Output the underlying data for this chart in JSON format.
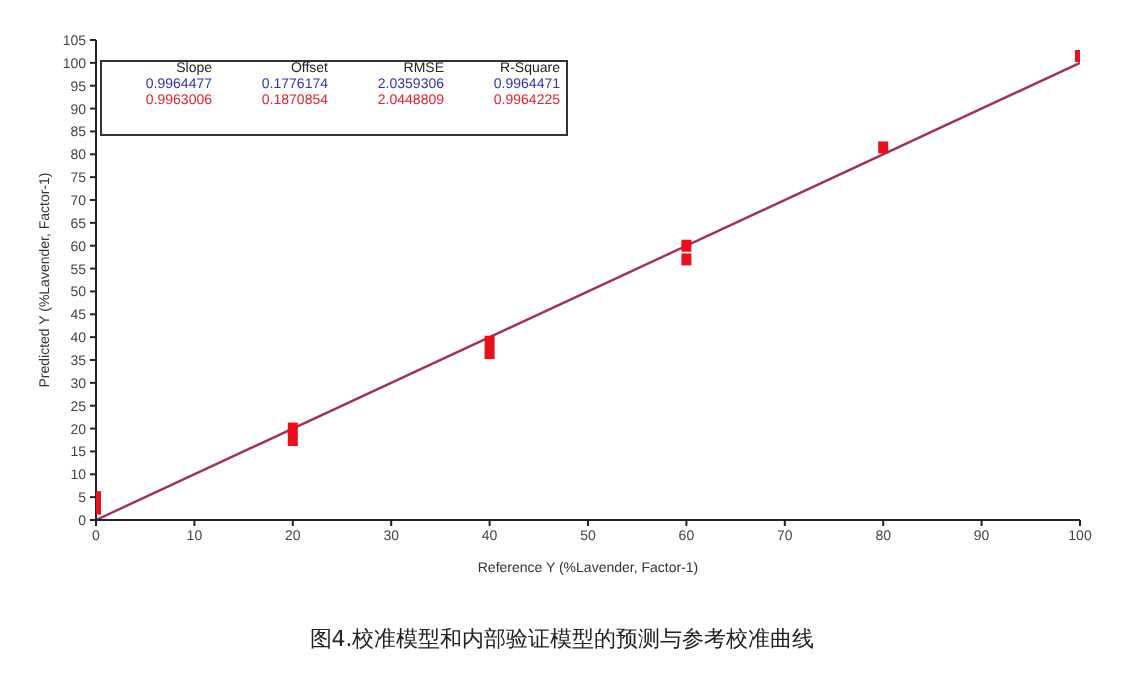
{
  "chart_data": {
    "type": "scatter",
    "title": "图4.校准模型和内部验证模型的预测与参考校准曲线",
    "xlabel": "Reference Y (%Lavender, Factor-1)",
    "ylabel": "Predicted Y (%Lavender, Factor-1)",
    "xlim": [
      0,
      100
    ],
    "ylim": [
      0,
      105
    ],
    "xticks": [
      0,
      10,
      20,
      30,
      40,
      50,
      60,
      70,
      80,
      90,
      100
    ],
    "yticks": [
      0,
      5,
      10,
      15,
      20,
      25,
      30,
      35,
      40,
      45,
      50,
      55,
      60,
      65,
      70,
      75,
      80,
      85,
      90,
      95,
      100,
      105
    ],
    "marker": "square",
    "annotations": [
      "Slope",
      "Offset",
      "RMSE",
      "R-Square",
      "0.9964477",
      "0.1776174",
      "2.0359306",
      "0.9964471",
      "0.9963006",
      "0.1870854",
      "2.0448809",
      "0.9964225"
    ],
    "series": [
      {
        "color": "#e8101a",
        "x": [
          0,
          0,
          20,
          20,
          40,
          40,
          60,
          60,
          80,
          100
        ],
        "values": [
          2.5,
          5,
          17.5,
          20,
          36.5,
          39,
          57,
          60,
          81.5,
          101.5
        ]
      },
      {
        "type": "line",
        "marker": "none",
        "color": "#a03060",
        "x": [
          0,
          100
        ],
        "values": [
          0,
          100
        ]
      }
    ]
  }
}
